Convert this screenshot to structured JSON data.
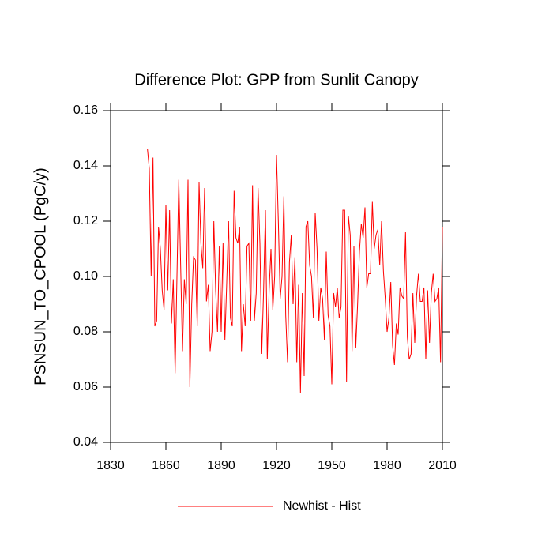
{
  "chart_data": {
    "type": "line",
    "title": "Difference Plot: GPP from Sunlit Canopy",
    "y_label": "PSNSUN_TO_CPOOL  (PgC/y)",
    "x": [
      1850,
      1851,
      1852,
      1853,
      1854,
      1855,
      1856,
      1857,
      1858,
      1859,
      1860,
      1861,
      1862,
      1863,
      1864,
      1865,
      1866,
      1867,
      1868,
      1869,
      1870,
      1871,
      1872,
      1873,
      1874,
      1875,
      1876,
      1877,
      1878,
      1879,
      1880,
      1881,
      1882,
      1883,
      1884,
      1885,
      1886,
      1887,
      1888,
      1889,
      1890,
      1891,
      1892,
      1893,
      1894,
      1895,
      1896,
      1897,
      1898,
      1899,
      1900,
      1901,
      1902,
      1903,
      1904,
      1905,
      1906,
      1907,
      1908,
      1909,
      1910,
      1911,
      1912,
      1913,
      1914,
      1915,
      1916,
      1917,
      1918,
      1919,
      1920,
      1921,
      1922,
      1923,
      1924,
      1925,
      1926,
      1927,
      1928,
      1929,
      1930,
      1931,
      1932,
      1933,
      1934,
      1935,
      1936,
      1937,
      1938,
      1939,
      1940,
      1941,
      1942,
      1943,
      1944,
      1945,
      1946,
      1947,
      1948,
      1949,
      1950,
      1951,
      1952,
      1953,
      1954,
      1955,
      1956,
      1957,
      1958,
      1959,
      1960,
      1961,
      1962,
      1963,
      1964,
      1965,
      1966,
      1967,
      1968,
      1969,
      1970,
      1971,
      1972,
      1973,
      1974,
      1975,
      1976,
      1977,
      1978,
      1979,
      1980,
      1981,
      1982,
      1983,
      1984,
      1985,
      1986,
      1987,
      1988,
      1989,
      1990,
      1991,
      1992,
      1993,
      1994,
      1995,
      1996,
      1997,
      1998,
      1999,
      2000,
      2001,
      2002,
      2003,
      2004,
      2005,
      2006,
      2007,
      2008,
      2009,
      2010
    ],
    "series": [
      {
        "name": "Newhist - Hist",
        "color": "#ff0000",
        "values": [
          0.146,
          0.139,
          0.1,
          0.143,
          0.082,
          0.084,
          0.118,
          0.11,
          0.095,
          0.088,
          0.126,
          0.095,
          0.124,
          0.083,
          0.099,
          0.065,
          0.1,
          0.135,
          0.104,
          0.073,
          0.099,
          0.09,
          0.135,
          0.06,
          0.09,
          0.107,
          0.106,
          0.082,
          0.134,
          0.112,
          0.103,
          0.132,
          0.091,
          0.097,
          0.073,
          0.08,
          0.12,
          0.095,
          0.08,
          0.111,
          0.08,
          0.112,
          0.077,
          0.098,
          0.12,
          0.085,
          0.082,
          0.131,
          0.114,
          0.112,
          0.118,
          0.073,
          0.09,
          0.082,
          0.111,
          0.112,
          0.084,
          0.133,
          0.084,
          0.094,
          0.132,
          0.112,
          0.072,
          0.095,
          0.124,
          0.07,
          0.095,
          0.11,
          0.088,
          0.1,
          0.144,
          0.12,
          0.092,
          0.1,
          0.129,
          0.086,
          0.069,
          0.105,
          0.115,
          0.09,
          0.107,
          0.069,
          0.097,
          0.058,
          0.094,
          0.064,
          0.118,
          0.12,
          0.104,
          0.1,
          0.085,
          0.123,
          0.11,
          0.084,
          0.096,
          0.092,
          0.077,
          0.109,
          0.086,
          0.082,
          0.061,
          0.094,
          0.089,
          0.096,
          0.085,
          0.089,
          0.124,
          0.124,
          0.062,
          0.122,
          0.115,
          0.073,
          0.111,
          0.074,
          0.09,
          0.109,
          0.119,
          0.114,
          0.125,
          0.096,
          0.101,
          0.101,
          0.127,
          0.11,
          0.115,
          0.117,
          0.104,
          0.12,
          0.102,
          0.092,
          0.08,
          0.085,
          0.098,
          0.075,
          0.068,
          0.083,
          0.079,
          0.096,
          0.093,
          0.092,
          0.116,
          0.078,
          0.07,
          0.072,
          0.094,
          0.076,
          0.093,
          0.101,
          0.091,
          0.091,
          0.096,
          0.07,
          0.095,
          0.076,
          0.094,
          0.101,
          0.091,
          0.092,
          0.096,
          0.069,
          0.118
        ]
      }
    ],
    "xlim": [
      1830,
      2010
    ],
    "xticks": [
      1830,
      1860,
      1890,
      1920,
      1950,
      1980,
      2010
    ],
    "ylim": [
      0.04,
      0.16
    ],
    "yticks": [
      0.04,
      0.06,
      0.08,
      {
        "value": 0.1,
        "label": "0.10"
      },
      0.12,
      0.14,
      0.16
    ],
    "grid": false,
    "legend": "bottom"
  }
}
